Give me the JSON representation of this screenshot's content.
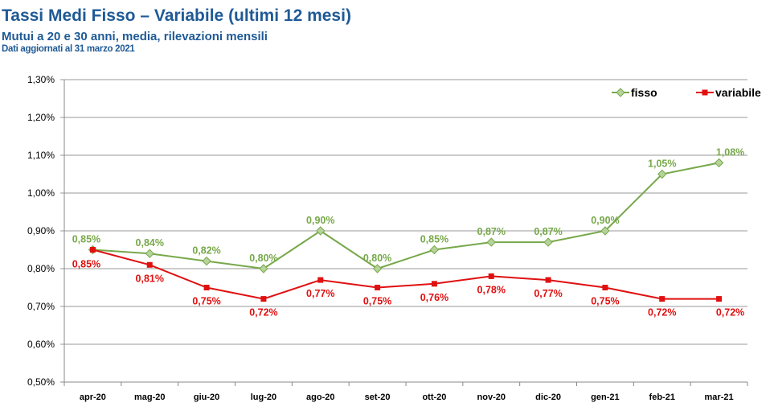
{
  "header": {
    "title": "Tassi Medi Fisso – Variabile (ultimi 12 mesi)",
    "subtitle": "Mutui a 20 e 30 anni, media, rilevazioni mensili",
    "note": "Dati aggiornati al 31 marzo 2021"
  },
  "chart_data": {
    "type": "line",
    "categories": [
      "apr-20",
      "mag-20",
      "giu-20",
      "lug-20",
      "ago-20",
      "set-20",
      "ott-20",
      "nov-20",
      "dic-20",
      "gen-21",
      "feb-21",
      "mar-21"
    ],
    "ylim": [
      0.5,
      1.3
    ],
    "yticks": [
      "0,50%",
      "0,60%",
      "0,70%",
      "0,80%",
      "0,90%",
      "1,00%",
      "1,10%",
      "1,20%",
      "1,30%"
    ],
    "grid": true,
    "legend_position": "top-right",
    "series": [
      {
        "name": "fisso",
        "color": "#77a84a",
        "marker": "diamond",
        "values": [
          0.85,
          0.84,
          0.82,
          0.8,
          0.9,
          0.8,
          0.85,
          0.87,
          0.87,
          0.9,
          1.05,
          1.08
        ],
        "labels": [
          "0,85%",
          "0,84%",
          "0,82%",
          "0,80%",
          "0,90%",
          "0,80%",
          "0,85%",
          "0,87%",
          "0,87%",
          "0,90%",
          "1,05%",
          "1,08%"
        ]
      },
      {
        "name": "variabile",
        "color": "#e01010",
        "marker": "square",
        "values": [
          0.85,
          0.81,
          0.75,
          0.72,
          0.77,
          0.75,
          0.76,
          0.78,
          0.77,
          0.75,
          0.72,
          0.72
        ],
        "labels": [
          "0,85%",
          "0,81%",
          "0,75%",
          "0,72%",
          "0,77%",
          "0,75%",
          "0,76%",
          "0,78%",
          "0,77%",
          "0,75%",
          "0,72%",
          "0,72%"
        ]
      }
    ]
  }
}
